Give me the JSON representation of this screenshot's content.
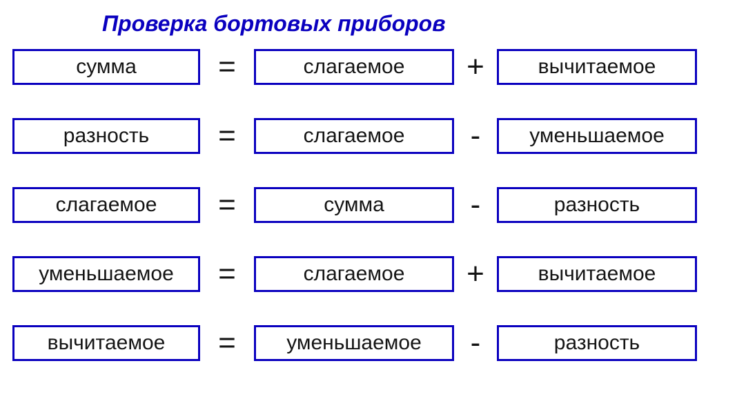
{
  "title": "Проверка бортовых приборов",
  "style": {
    "title_color": "#0a00bf",
    "border_color": "#0a00bf",
    "text_color": "#141414",
    "background_color": "#ffffff",
    "title_fontsize": 32,
    "box_fontsize": 30,
    "operator_fontsize": 44
  },
  "equations": [
    {
      "left": "сумма",
      "eq": "=",
      "mid": "слагаемое",
      "op": "+",
      "right": "вычитаемое"
    },
    {
      "left": "разность",
      "eq": "=",
      "mid": "слагаемое",
      "op": "-",
      "right": "уменьшаемое"
    },
    {
      "left": "слагаемое",
      "eq": "=",
      "mid": "сумма",
      "op": "-",
      "right": "разность"
    },
    {
      "left": "уменьшаемое",
      "eq": "=",
      "mid": "слагаемое",
      "op": "+",
      "right": "вычитаемое"
    },
    {
      "left": "вычитаемое",
      "eq": "=",
      "mid": "уменьшаемое",
      "op": "-",
      "right": "разность"
    }
  ]
}
